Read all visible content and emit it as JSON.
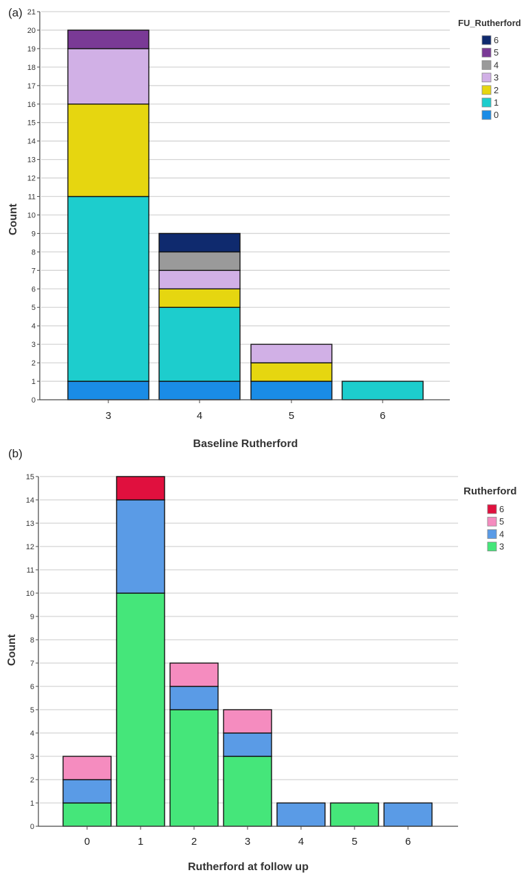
{
  "chart_data": [
    {
      "panel_label": "(a)",
      "type": "bar",
      "stacked": true,
      "title": "",
      "xlabel": "Baseline Rutherford",
      "ylabel": "Count",
      "ylim": [
        0,
        21
      ],
      "yticks": [
        0,
        1,
        2,
        3,
        4,
        5,
        6,
        7,
        8,
        9,
        10,
        11,
        12,
        13,
        14,
        15,
        16,
        17,
        18,
        19,
        20,
        21
      ],
      "grid": true,
      "categories": [
        "3",
        "4",
        "5",
        "6"
      ],
      "legend_title": "FU_Rutherford",
      "legend_position": "top-right",
      "series": [
        {
          "name": "0",
          "color": "#1a8ce6",
          "values": [
            1,
            1,
            1,
            0
          ]
        },
        {
          "name": "1",
          "color": "#1dcdcd",
          "values": [
            10,
            4,
            0,
            1
          ]
        },
        {
          "name": "2",
          "color": "#e6d610",
          "values": [
            5,
            1,
            1,
            0
          ]
        },
        {
          "name": "3",
          "color": "#d1b0e6",
          "values": [
            3,
            1,
            1,
            0
          ]
        },
        {
          "name": "4",
          "color": "#9a9a9a",
          "values": [
            0,
            1,
            0,
            0
          ]
        },
        {
          "name": "5",
          "color": "#7a3a96",
          "values": [
            1,
            0,
            0,
            0
          ]
        },
        {
          "name": "6",
          "color": "#0f2a6e",
          "values": [
            0,
            1,
            0,
            0
          ]
        }
      ]
    },
    {
      "panel_label": "(b)",
      "type": "bar",
      "stacked": true,
      "title": "",
      "xlabel": "Rutherford at follow up",
      "ylabel": "Count",
      "ylim": [
        0,
        15
      ],
      "yticks": [
        0,
        1,
        2,
        3,
        4,
        5,
        6,
        7,
        8,
        9,
        10,
        11,
        12,
        13,
        14,
        15
      ],
      "grid": true,
      "categories": [
        "0",
        "1",
        "2",
        "3",
        "4",
        "5",
        "6"
      ],
      "legend_title": "Rutherford",
      "legend_position": "top-right",
      "series": [
        {
          "name": "3",
          "color": "#45e67a",
          "values": [
            1,
            10,
            5,
            3,
            0,
            1,
            0
          ]
        },
        {
          "name": "4",
          "color": "#5a9be6",
          "values": [
            1,
            4,
            1,
            1,
            1,
            0,
            1
          ]
        },
        {
          "name": "5",
          "color": "#f58cbf",
          "values": [
            1,
            0,
            1,
            1,
            0,
            0,
            0
          ]
        },
        {
          "name": "6",
          "color": "#e0103e",
          "values": [
            0,
            1,
            0,
            0,
            0,
            0,
            0
          ]
        }
      ]
    }
  ]
}
